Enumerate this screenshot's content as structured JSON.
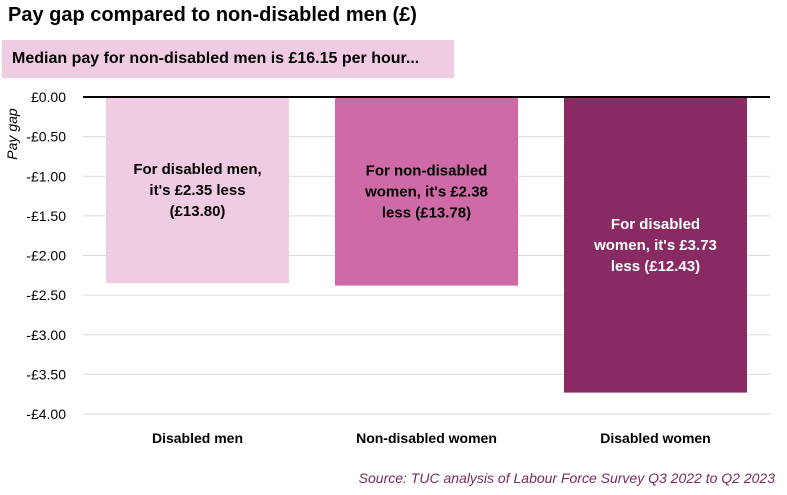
{
  "header": {
    "title": "Pay gap compared to non-disabled men (£)",
    "subtitle": "Median pay for non-disabled men is £16.15 per hour..."
  },
  "footer": {
    "source": "Source: TUC analysis of Labour Force Survey Q3 2022 to Q2 2023"
  },
  "chart_data": {
    "type": "bar",
    "title": "Pay gap compared to non-disabled men (£)",
    "subtitle": "Median pay for non-disabled men is £16.15 per hour...",
    "ylabel": "Pay gap",
    "xlabel": "",
    "categories": [
      "Disabled men",
      "Non-disabled women",
      "Disabled women"
    ],
    "values": [
      -2.35,
      -2.38,
      -3.73
    ],
    "ylim": [
      -4.0,
      0.0
    ],
    "yticks": [
      0.0,
      -0.5,
      -1.0,
      -1.5,
      -2.0,
      -2.5,
      -3.0,
      -3.5,
      -4.0
    ],
    "ytick_labels": [
      "£0.00",
      "-£0.50",
      "-£1.00",
      "-£1.50",
      "-£2.00",
      "-£2.50",
      "-£3.00",
      "-£3.50",
      "-£4.00"
    ],
    "bar_labels": [
      [
        "For disabled men,",
        "it's £2.35 less",
        "(£13.80)"
      ],
      [
        "For non-disabled",
        "women, it's £2.38",
        "less (£13.78)"
      ],
      [
        "For disabled",
        "women, it's £3.73",
        "less (£12.43)"
      ]
    ],
    "bar_colors": [
      "#efcce1",
      "#d06aa6",
      "#8a2a62"
    ],
    "bar_label_colors": [
      "#000000",
      "#000000",
      "#ffffff"
    ],
    "grid": true,
    "legend": "none"
  }
}
